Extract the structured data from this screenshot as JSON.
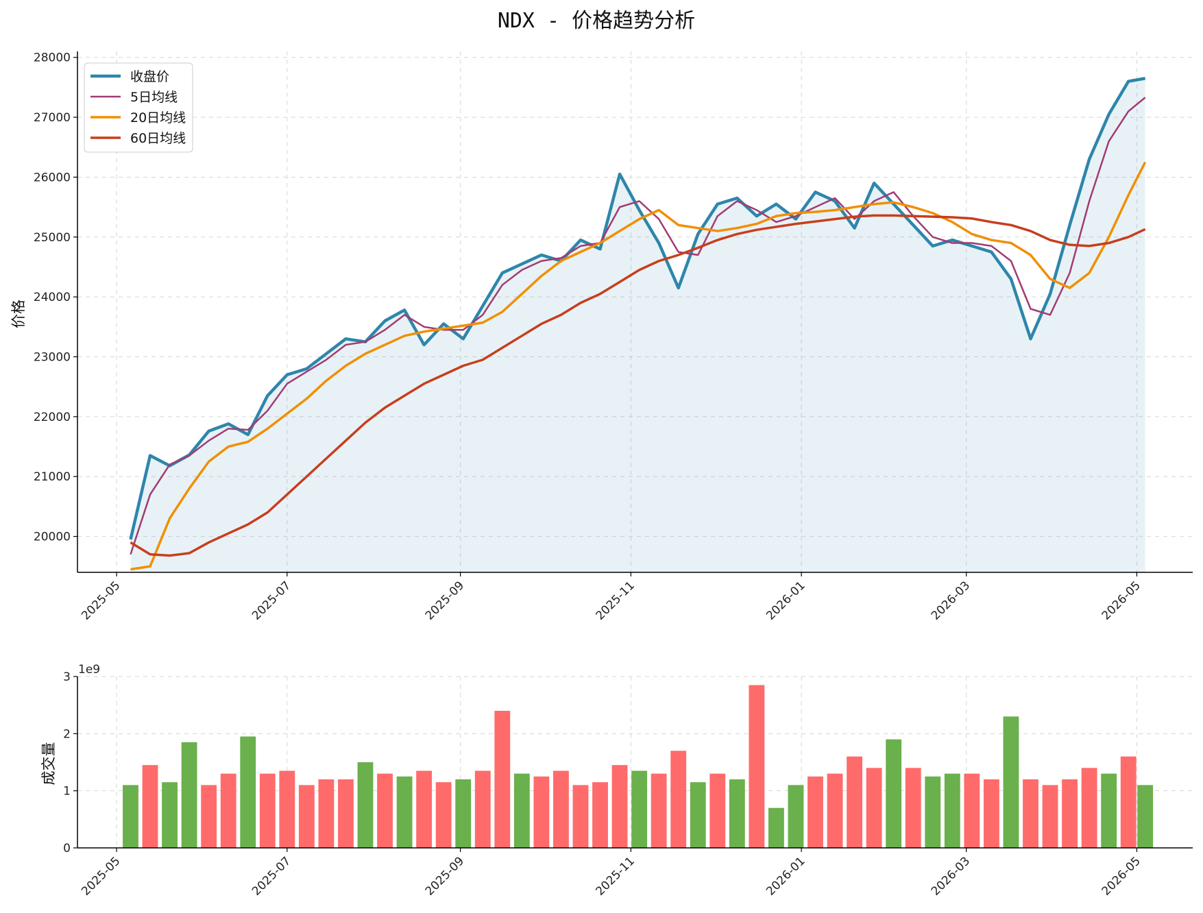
{
  "chart_data": [
    {
      "type": "line",
      "title": "NDX - 价格趋势分析",
      "xlabel": "",
      "ylabel": "价格",
      "ylim": [
        19400,
        28100
      ],
      "yticks": [
        20000,
        21000,
        22000,
        23000,
        24000,
        25000,
        26000,
        27000,
        28000
      ],
      "x_axis": "date",
      "xlim": [
        "2025-04-17",
        "2026-05-21"
      ],
      "xticks": [
        "2025-05",
        "2025-07",
        "2025-09",
        "2025-11",
        "2026-01",
        "2026-03",
        "2026-05"
      ],
      "grid": true,
      "legend_position": "top-left",
      "close_fill": true,
      "x": [
        "2025-05-06",
        "2025-05-13",
        "2025-05-20",
        "2025-05-27",
        "2025-06-03",
        "2025-06-10",
        "2025-06-17",
        "2025-06-24",
        "2025-07-01",
        "2025-07-08",
        "2025-07-15",
        "2025-07-22",
        "2025-07-29",
        "2025-08-05",
        "2025-08-12",
        "2025-08-19",
        "2025-08-26",
        "2025-09-02",
        "2025-09-09",
        "2025-09-16",
        "2025-09-23",
        "2025-09-30",
        "2025-10-07",
        "2025-10-14",
        "2025-10-21",
        "2025-10-28",
        "2025-11-04",
        "2025-11-11",
        "2025-11-18",
        "2025-11-25",
        "2025-12-02",
        "2025-12-09",
        "2025-12-16",
        "2025-12-23",
        "2025-12-30",
        "2026-01-06",
        "2026-01-13",
        "2026-01-20",
        "2026-01-27",
        "2026-02-03",
        "2026-02-10",
        "2026-02-17",
        "2026-02-24",
        "2026-03-03",
        "2026-03-10",
        "2026-03-17",
        "2026-03-24",
        "2026-03-31",
        "2026-04-07",
        "2026-04-14",
        "2026-04-21",
        "2026-04-28",
        "2026-05-04"
      ],
      "series": [
        {
          "name": "收盘价",
          "color": "#2e86ab",
          "values": [
            19950,
            21350,
            21180,
            21360,
            21760,
            21880,
            21700,
            22350,
            22700,
            22800,
            23050,
            23300,
            23250,
            23600,
            23780,
            23200,
            23550,
            23300,
            23850,
            24400,
            24550,
            24700,
            24600,
            24950,
            24800,
            26050,
            25450,
            24900,
            24150,
            25050,
            25550,
            25650,
            25350,
            25550,
            25300,
            25750,
            25600,
            25150,
            25900,
            25550,
            25200,
            24850,
            24950,
            24850,
            24750,
            24300,
            23300,
            24050,
            25200,
            26300,
            27050,
            27600,
            27650
          ]
        },
        {
          "name": "5日均线",
          "color": "#a23b72",
          "values": [
            19700,
            20700,
            21200,
            21350,
            21600,
            21800,
            21780,
            22100,
            22550,
            22750,
            22950,
            23200,
            23250,
            23450,
            23700,
            23500,
            23450,
            23450,
            23700,
            24200,
            24450,
            24600,
            24650,
            24850,
            24900,
            25500,
            25600,
            25300,
            24750,
            24700,
            25350,
            25600,
            25450,
            25250,
            25350,
            25500,
            25650,
            25300,
            25600,
            25750,
            25350,
            25000,
            24900,
            24900,
            24850,
            24600,
            23800,
            23700,
            24400,
            25600,
            26600,
            27100,
            27330
          ]
        },
        {
          "name": "20日均线",
          "color": "#f18f01",
          "values": [
            19450,
            19500,
            20300,
            20800,
            21250,
            21500,
            21580,
            21800,
            22050,
            22300,
            22600,
            22850,
            23050,
            23200,
            23350,
            23420,
            23470,
            23520,
            23570,
            23750,
            24050,
            24350,
            24600,
            24750,
            24900,
            25100,
            25300,
            25450,
            25200,
            25150,
            25100,
            25150,
            25220,
            25350,
            25400,
            25420,
            25450,
            25500,
            25550,
            25580,
            25500,
            25400,
            25250,
            25050,
            24950,
            24900,
            24700,
            24300,
            24150,
            24400,
            25000,
            25700,
            26250
          ]
        },
        {
          "name": "60日均线",
          "color": "#c73e1d",
          "values": [
            19900,
            19700,
            19680,
            19720,
            19900,
            20050,
            20200,
            20400,
            20700,
            21000,
            21300,
            21600,
            21900,
            22150,
            22350,
            22550,
            22700,
            22850,
            22950,
            23150,
            23350,
            23550,
            23700,
            23900,
            24050,
            24250,
            24450,
            24600,
            24700,
            24820,
            24950,
            25050,
            25120,
            25170,
            25220,
            25260,
            25300,
            25340,
            25360,
            25360,
            25350,
            25340,
            25330,
            25310,
            25250,
            25200,
            25100,
            24950,
            24870,
            24850,
            24900,
            25000,
            25130
          ]
        }
      ]
    },
    {
      "type": "bar",
      "title": "",
      "xlabel": "",
      "ylabel": "成交量",
      "y_offset_label": "1e9",
      "ylim": [
        0,
        3
      ],
      "yticks": [
        0,
        1,
        2,
        3
      ],
      "xlim": [
        "2025-04-17",
        "2026-05-21"
      ],
      "xticks": [
        "2025-05",
        "2025-07",
        "2025-09",
        "2025-11",
        "2026-01",
        "2026-03",
        "2026-05"
      ],
      "grid": true,
      "up_color": "#ff6b6b",
      "down_color": "#6ab04c",
      "x": [
        "2025-05-06",
        "2025-05-13",
        "2025-05-20",
        "2025-05-27",
        "2025-06-03",
        "2025-06-10",
        "2025-06-17",
        "2025-06-24",
        "2025-07-01",
        "2025-07-08",
        "2025-07-15",
        "2025-07-22",
        "2025-07-29",
        "2025-08-05",
        "2025-08-12",
        "2025-08-19",
        "2025-08-26",
        "2025-09-02",
        "2025-09-09",
        "2025-09-16",
        "2025-09-23",
        "2025-09-30",
        "2025-10-07",
        "2025-10-14",
        "2025-10-21",
        "2025-10-28",
        "2025-11-04",
        "2025-11-11",
        "2025-11-18",
        "2025-11-25",
        "2025-12-02",
        "2025-12-09",
        "2025-12-16",
        "2025-12-23",
        "2025-12-30",
        "2026-01-06",
        "2026-01-13",
        "2026-01-20",
        "2026-01-27",
        "2026-02-03",
        "2026-02-10",
        "2026-02-17",
        "2026-02-24",
        "2026-03-03",
        "2026-03-10",
        "2026-03-17",
        "2026-03-24",
        "2026-03-31",
        "2026-04-07",
        "2026-04-14",
        "2026-04-21",
        "2026-04-28",
        "2026-05-04"
      ],
      "values": [
        1.1,
        1.45,
        1.15,
        1.85,
        1.1,
        1.3,
        1.95,
        1.3,
        1.35,
        1.1,
        1.2,
        1.2,
        1.5,
        1.3,
        1.25,
        1.35,
        1.15,
        1.2,
        1.35,
        2.4,
        1.3,
        1.25,
        1.35,
        1.1,
        1.15,
        1.45,
        1.35,
        1.3,
        1.7,
        1.15,
        1.3,
        1.2,
        2.85,
        0.7,
        1.1,
        1.25,
        1.3,
        1.6,
        1.4,
        1.9,
        1.4,
        1.25,
        1.3,
        1.3,
        1.2,
        2.3,
        1.2,
        1.1,
        1.2,
        1.4,
        1.3,
        1.6,
        1.1
      ],
      "directions": [
        "down",
        "up",
        "down",
        "down",
        "up",
        "up",
        "down",
        "up",
        "up",
        "up",
        "up",
        "up",
        "down",
        "up",
        "down",
        "up",
        "up",
        "down",
        "up",
        "up",
        "down",
        "up",
        "up",
        "up",
        "up",
        "up",
        "down",
        "up",
        "up",
        "down",
        "up",
        "down",
        "up",
        "down",
        "down",
        "up",
        "up",
        "up",
        "up",
        "down",
        "up",
        "down",
        "down",
        "up",
        "up",
        "down",
        "up",
        "up",
        "up",
        "up",
        "down",
        "up",
        "down"
      ]
    }
  ]
}
